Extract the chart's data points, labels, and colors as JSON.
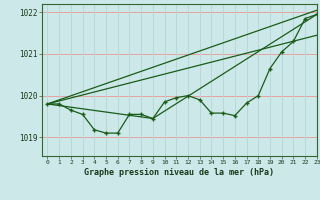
{
  "title": "Graphe pression niveau de la mer (hPa)",
  "background_color": "#cce8e8",
  "grid_color_h": "#e8a0a0",
  "grid_color_v": "#b8d8d8",
  "line_color": "#1a5c1a",
  "xlim": [
    -0.5,
    23
  ],
  "ylim": [
    1018.55,
    1022.2
  ],
  "yticks": [
    1019,
    1020,
    1021,
    1022
  ],
  "xticks": [
    0,
    1,
    2,
    3,
    4,
    5,
    6,
    7,
    8,
    9,
    10,
    11,
    12,
    13,
    14,
    15,
    16,
    17,
    18,
    19,
    20,
    21,
    22,
    23
  ],
  "series_main": [
    1019.8,
    1019.8,
    1019.65,
    1019.55,
    1019.18,
    1019.1,
    1019.1,
    1019.55,
    1019.55,
    1019.45,
    1019.85,
    1019.95,
    1020.0,
    1019.9,
    1019.58,
    1019.58,
    1019.52,
    1019.82,
    1020.0,
    1020.65,
    1021.05,
    1021.3,
    1021.85,
    1021.95
  ],
  "series_line1_x": [
    0,
    23
  ],
  "series_line1_y": [
    1019.8,
    1022.05
  ],
  "series_line2_x": [
    0,
    23
  ],
  "series_line2_y": [
    1019.8,
    1021.45
  ],
  "series_line3_x": [
    0,
    9,
    23
  ],
  "series_line3_y": [
    1019.8,
    1019.45,
    1021.95
  ]
}
